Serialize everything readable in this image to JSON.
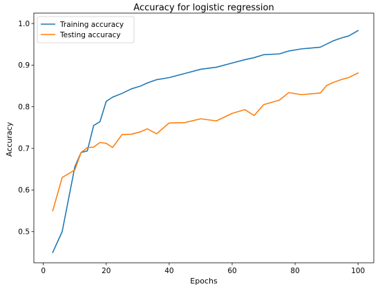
{
  "chart_data": {
    "type": "line",
    "title": "Accuracy for logistic regression",
    "xlabel": "Epochs",
    "ylabel": "Accuracy",
    "xlim": [
      -3,
      105
    ],
    "ylim": [
      0.425,
      1.025
    ],
    "xticks": [
      0,
      20,
      40,
      60,
      80,
      100
    ],
    "yticks": [
      0.5,
      0.6,
      0.7,
      0.8,
      0.9,
      1.0
    ],
    "xtick_labels": [
      "0",
      "20",
      "40",
      "60",
      "80",
      "100"
    ],
    "ytick_labels": [
      "0.5",
      "0.6",
      "0.7",
      "0.8",
      "0.9",
      "1.0"
    ],
    "grid": false,
    "legend_position": "upper-left",
    "series": [
      {
        "name": "Training accuracy",
        "color": "#1f77b4",
        "x": [
          3,
          6,
          10,
          12,
          14,
          16,
          18,
          20,
          22,
          25,
          28,
          31,
          33,
          36,
          40,
          45,
          50,
          55,
          60,
          64,
          67,
          70,
          75,
          78,
          82,
          85,
          88,
          92,
          95,
          97,
          100
        ],
        "y": [
          0.45,
          0.5,
          0.655,
          0.69,
          0.694,
          0.755,
          0.764,
          0.813,
          0.823,
          0.832,
          0.843,
          0.85,
          0.857,
          0.865,
          0.87,
          0.88,
          0.89,
          0.895,
          0.905,
          0.913,
          0.918,
          0.925,
          0.927,
          0.934,
          0.939,
          0.941,
          0.943,
          0.958,
          0.966,
          0.97,
          0.983
        ]
      },
      {
        "name": "Testing accuracy",
        "color": "#ff7f0e",
        "x": [
          3,
          6,
          10,
          12,
          14,
          16,
          18,
          20,
          22,
          25,
          28,
          31,
          33,
          36,
          40,
          45,
          50,
          55,
          60,
          64,
          67,
          70,
          75,
          78,
          82,
          85,
          88,
          90,
          92,
          95,
          97,
          100
        ],
        "y": [
          0.55,
          0.63,
          0.648,
          0.69,
          0.702,
          0.703,
          0.714,
          0.712,
          0.702,
          0.733,
          0.734,
          0.74,
          0.747,
          0.735,
          0.761,
          0.762,
          0.771,
          0.766,
          0.784,
          0.793,
          0.779,
          0.805,
          0.816,
          0.834,
          0.829,
          0.831,
          0.833,
          0.851,
          0.858,
          0.866,
          0.87,
          0.881
        ]
      }
    ]
  }
}
